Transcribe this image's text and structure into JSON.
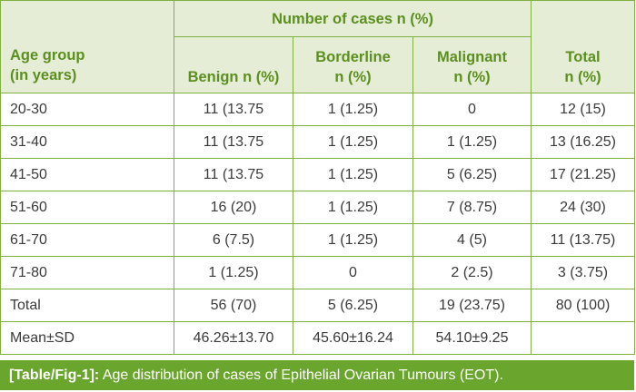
{
  "table": {
    "header": {
      "age_group": "Age group",
      "age_group_sub": "(in years)",
      "group_label": "Number of cases n (%)",
      "benign": "Benign n (%)",
      "borderline": "Borderline",
      "borderline_sub": "n (%)",
      "malignant": "Malignant",
      "malignant_sub": "n (%)",
      "total": "Total",
      "total_sub": "n (%)"
    },
    "rows": [
      {
        "age": "20-30",
        "benign": "11 (13.75",
        "borderline": "1 (1.25)",
        "malignant": "0",
        "total": "12 (15)"
      },
      {
        "age": "31-40",
        "benign": "11 (13.75",
        "borderline": "1 (1.25)",
        "malignant": "1 (1.25)",
        "total": "13 (16.25)"
      },
      {
        "age": "41-50",
        "benign": "11 (13.75",
        "borderline": "1 (1.25)",
        "malignant": "5 (6.25)",
        "total": "17 (21.25)"
      },
      {
        "age": "51-60",
        "benign": "16 (20)",
        "borderline": "1 (1.25)",
        "malignant": "7 (8.75)",
        "total": "24 (30)"
      },
      {
        "age": "61-70",
        "benign": "6 (7.5)",
        "borderline": "1 (1.25)",
        "malignant": "4 (5)",
        "total": "11 (13.75)"
      },
      {
        "age": "71-80",
        "benign": "1 (1.25)",
        "borderline": "0",
        "malignant": "2 (2.5)",
        "total": "3 (3.75)"
      },
      {
        "age": "Total",
        "benign": "56 (70)",
        "borderline": "5 (6.25)",
        "malignant": "19 (23.75)",
        "total": "80 (100)"
      },
      {
        "age": "Mean±SD",
        "benign": "46.26±13.70",
        "borderline": "45.60±16.24",
        "malignant": "54.10±9.25",
        "total": ""
      }
    ]
  },
  "caption": {
    "label": "[Table/Fig-1]:",
    "text": "Age distribution of cases of Epithelial Ovarian Tumours (EOT)."
  },
  "colors": {
    "header_bg": "#e6edd6",
    "header_text": "#5b8f1f",
    "border": "#7fb040",
    "caption_bg": "#6aa52d",
    "caption_text": "#ffffff",
    "body_text": "#3a3a3a"
  }
}
